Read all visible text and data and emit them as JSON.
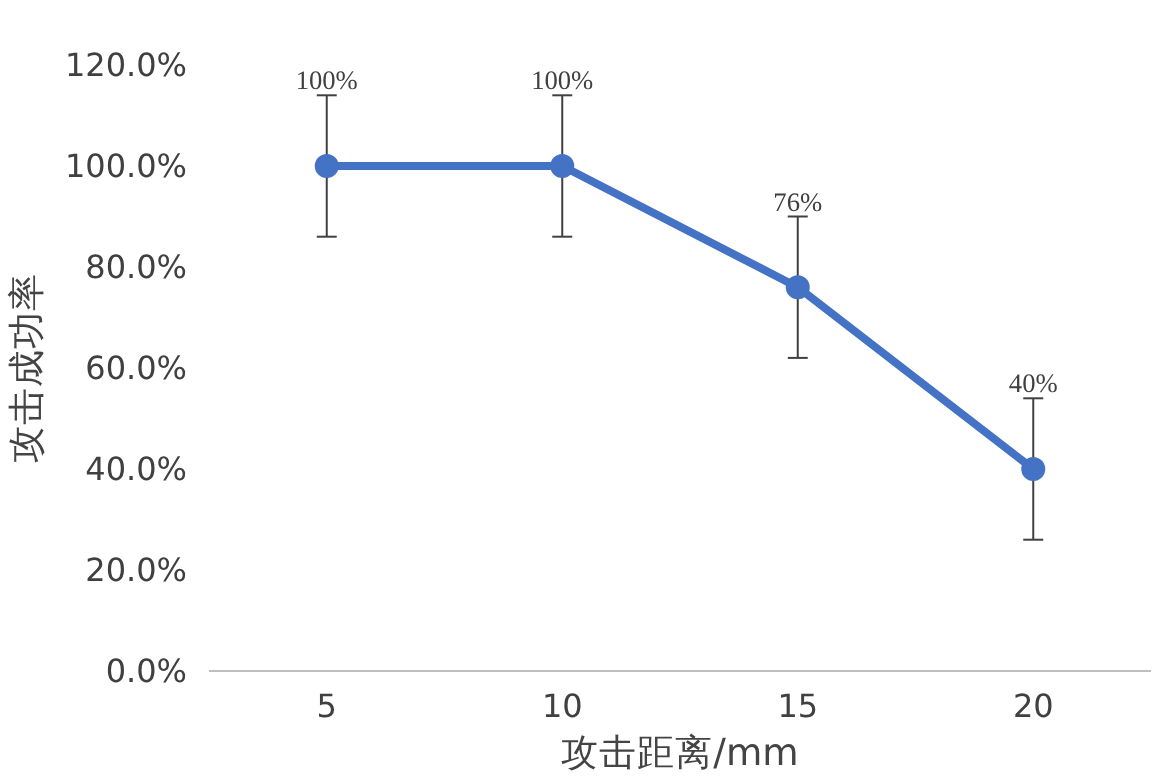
{
  "chart_data": {
    "type": "line",
    "xlabel": "攻击距离/mm",
    "ylabel": "攻击成功率",
    "categories": [
      "5",
      "10",
      "15",
      "20"
    ],
    "series": [
      {
        "color": "#4472c4",
        "values": [
          100,
          100,
          76,
          40
        ],
        "errors": [
          14,
          14,
          14,
          14
        ],
        "value_labels": [
          "100%",
          "100%",
          "76%",
          "40%"
        ]
      }
    ],
    "ylim": [
      0,
      120
    ],
    "yticks": [
      {
        "value": 0,
        "label": "0.0%"
      },
      {
        "value": 20,
        "label": "20.0%"
      },
      {
        "value": 40,
        "label": "40.0%"
      },
      {
        "value": 60,
        "label": "60.0%"
      },
      {
        "value": 80,
        "label": "80.0%"
      },
      {
        "value": 100,
        "label": "100.0%"
      },
      {
        "value": 120,
        "label": "120.0%"
      }
    ],
    "grid": false,
    "marker": "circle",
    "line_style": "solid"
  }
}
